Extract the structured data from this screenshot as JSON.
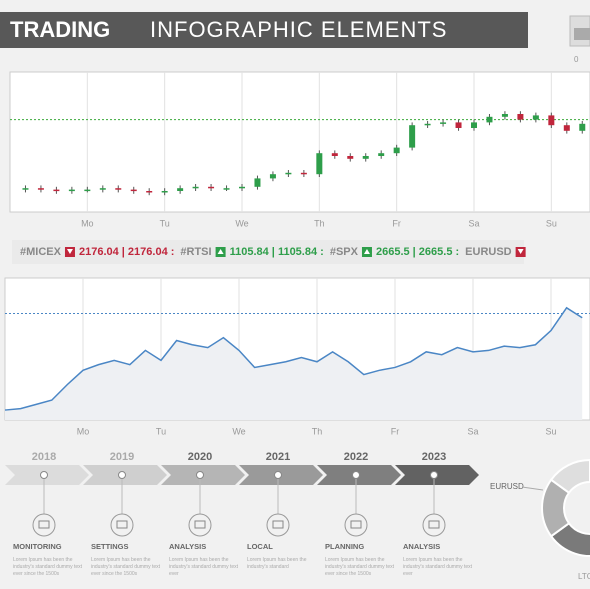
{
  "header": {
    "title_bold": "TRADING",
    "title_light": "INFOGRAPHIC  ELEMENTS",
    "widget_value": "0"
  },
  "ticker": [
    {
      "symbol": "#MICEX",
      "quote": "2176.04 | 2176.04 :"
    },
    {
      "symbol": "#RTSI",
      "quote": "1105.84 | 1105.84 :"
    },
    {
      "symbol": "#SPX",
      "quote": "2665.5 | 2665.5 :"
    },
    {
      "symbol": "EURUSD",
      "quote": ""
    }
  ],
  "chart_data": [
    {
      "type": "candlestick",
      "up_color": "#2e9e4a",
      "down_color": "#c0263c",
      "reference": 66,
      "reference_color": "#3aaa3a",
      "x": [
        -0.8,
        -0.6,
        -0.4,
        -0.2,
        0,
        0.2,
        0.4,
        0.6,
        0.8,
        1.0,
        1.2,
        1.4,
        1.6,
        1.8,
        2.0,
        2.2,
        2.4,
        2.6,
        2.8,
        3.0,
        3.2,
        3.4,
        3.6,
        3.8,
        4.0,
        4.2,
        4.4,
        4.6,
        4.8,
        5.0,
        5.2,
        5.4,
        5.6,
        5.8,
        6.0,
        6.2,
        6.4
      ],
      "open": [
        16,
        17,
        16,
        15,
        16,
        16,
        17,
        16,
        15,
        14,
        15,
        17,
        18,
        17,
        17,
        18,
        24,
        27,
        28,
        27,
        42,
        40,
        38,
        40,
        42,
        46,
        62,
        63,
        64,
        60,
        64,
        68,
        70,
        66,
        69,
        62,
        58
      ],
      "high": [
        19,
        19,
        18,
        18,
        18,
        19,
        19,
        18,
        17,
        17,
        19,
        20,
        20,
        19,
        20,
        26,
        29,
        30,
        30,
        44,
        44,
        42,
        42,
        44,
        48,
        64,
        65,
        66,
        66,
        66,
        70,
        72,
        72,
        71,
        71,
        64,
        65
      ],
      "low": [
        14,
        14,
        13,
        13,
        14,
        14,
        14,
        13,
        12,
        12,
        13,
        15,
        15,
        15,
        15,
        16,
        22,
        25,
        25,
        25,
        38,
        36,
        36,
        38,
        40,
        44,
        60,
        61,
        58,
        58,
        62,
        66,
        64,
        64,
        60,
        56,
        56
      ],
      "close": [
        17,
        16,
        15,
        16,
        16,
        17,
        16,
        15,
        14,
        15,
        17,
        18,
        17,
        17,
        18,
        24,
        27,
        28,
        27,
        42,
        40,
        38,
        40,
        42,
        46,
        62,
        63,
        64,
        60,
        64,
        68,
        70,
        66,
        69,
        62,
        58,
        63
      ],
      "xlim": [
        -1,
        6.5
      ],
      "ylim": [
        0,
        100
      ],
      "xticks": [
        {
          "value": 0,
          "label": "Mo"
        },
        {
          "value": 1,
          "label": "Tu"
        },
        {
          "value": 2,
          "label": "We"
        },
        {
          "value": 3,
          "label": "Th"
        },
        {
          "value": 4,
          "label": "Fr"
        },
        {
          "value": 5,
          "label": "Sa"
        },
        {
          "value": 6,
          "label": "Su"
        }
      ],
      "grid": true
    },
    {
      "type": "line",
      "color": "#4a86c5",
      "reference": 75,
      "reference_color": "#4a86c5",
      "x": [
        -1.0,
        -0.8,
        -0.6,
        -0.4,
        -0.2,
        0,
        0.2,
        0.4,
        0.6,
        0.8,
        1.0,
        1.2,
        1.4,
        1.6,
        1.8,
        2.0,
        2.2,
        2.4,
        2.6,
        2.8,
        3.0,
        3.2,
        3.4,
        3.6,
        3.8,
        4.0,
        4.2,
        4.4,
        4.6,
        4.8,
        5.0,
        5.2,
        5.4,
        5.6,
        5.8,
        6.0,
        6.2,
        6.4
      ],
      "values": [
        7,
        8,
        11,
        14,
        25,
        35,
        39,
        42,
        39,
        49,
        42,
        56,
        53,
        51,
        58,
        49,
        37,
        39,
        41,
        44,
        41,
        48,
        41,
        32,
        35,
        37,
        41,
        48,
        46,
        51,
        48,
        49,
        52,
        51,
        53,
        63,
        79,
        72
      ],
      "xlim": [
        -1,
        6.5
      ],
      "ylim": [
        0,
        100
      ],
      "xticks": [
        {
          "value": 0,
          "label": "Mo"
        },
        {
          "value": 1,
          "label": "Tu"
        },
        {
          "value": 2,
          "label": "We"
        },
        {
          "value": 3,
          "label": "Th"
        },
        {
          "value": 4,
          "label": "Fr"
        },
        {
          "value": 5,
          "label": "Sa"
        },
        {
          "value": 6,
          "label": "Su"
        }
      ],
      "grid": true
    },
    {
      "type": "pie",
      "categories": [
        null,
        null,
        null,
        null,
        null
      ],
      "values": [
        30,
        15,
        20,
        20,
        15
      ],
      "colors": [
        "#9a9a9a",
        "#c8c8c8",
        "#7a7a7a",
        "#b0b0b0",
        "#dedede"
      ],
      "annotations": [
        "EURUSD",
        "LTC"
      ]
    }
  ],
  "timeline": [
    {
      "year": "2018",
      "label": "MONITORING",
      "text": "Lorem Ipsum has been the industry's standard dummy text ever since the 1500s"
    },
    {
      "year": "2019",
      "label": "SETTINGS",
      "text": "Lorem Ipsum has been the industry's standard dummy text ever since the 1500s"
    },
    {
      "year": "2020",
      "label": "ANALYSIS",
      "text": "Lorem Ipsum has been the industry's standard dummy text ever"
    },
    {
      "year": "2021",
      "label": "LOCAL",
      "text": "Lorem Ipsum has been the industry's standard"
    },
    {
      "year": "2022",
      "label": "PLANNING",
      "text": "Lorem Ipsum has been the industry's standard dummy text ever since the 1500s"
    },
    {
      "year": "2023",
      "label": "ANALYSIS",
      "text": "Lorem Ipsum has been the industry's standard dummy text ever"
    }
  ]
}
